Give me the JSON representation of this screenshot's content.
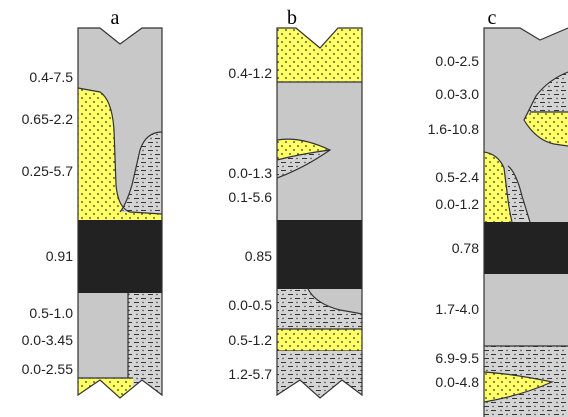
{
  "colors": {
    "background": "#ffffff",
    "clay": "#c8c8c8",
    "sand": "#ffff66",
    "coal": "#222222",
    "outline": "#333333"
  },
  "columns": [
    {
      "label": "a",
      "layer_labels": [
        "0.4-7.5",
        "0.65-2.2",
        "0.25-5.7",
        "0.91",
        "0.5-1.0",
        "0.0-3.45",
        "0.0-2.55"
      ]
    },
    {
      "label": "b",
      "layer_labels": [
        "0.4-1.2",
        "0.0-1.3",
        "0.1-5.6",
        "0.85",
        "0.0-0.5",
        "0.5-1.2",
        "1.2-5.7"
      ]
    },
    {
      "label": "c",
      "layer_labels": [
        "0.0-2.5",
        "0.0-3.0",
        "1.6-10.8",
        "0.5-2.4",
        "0.0-1.2",
        "0.78",
        "1.7-4.0",
        "6.9-9.5",
        "0.0-4.8"
      ]
    }
  ]
}
